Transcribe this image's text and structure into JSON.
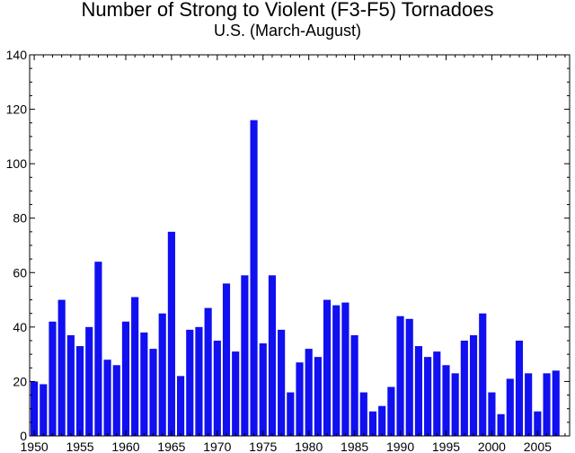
{
  "chart_data": {
    "type": "bar",
    "title": "Number of Strong to Violent (F3-F5) Tornadoes",
    "subtitle": "U.S.  (March-August)",
    "xlabel": "",
    "ylabel": "",
    "xlim": [
      1949.5,
      2008.5
    ],
    "ylim": [
      0,
      140
    ],
    "yticks": [
      0,
      20,
      40,
      60,
      80,
      100,
      120,
      140
    ],
    "xticks": [
      1950,
      1955,
      1960,
      1965,
      1970,
      1975,
      1980,
      1985,
      1990,
      1995,
      2000,
      2005
    ],
    "grid": false,
    "bar_color": "#1010f0",
    "x": [
      1950,
      1951,
      1952,
      1953,
      1954,
      1955,
      1956,
      1957,
      1958,
      1959,
      1960,
      1961,
      1962,
      1963,
      1964,
      1965,
      1966,
      1967,
      1968,
      1969,
      1970,
      1971,
      1972,
      1973,
      1974,
      1975,
      1976,
      1977,
      1978,
      1979,
      1980,
      1981,
      1982,
      1983,
      1984,
      1985,
      1986,
      1987,
      1988,
      1989,
      1990,
      1991,
      1992,
      1993,
      1994,
      1995,
      1996,
      1997,
      1998,
      1999,
      2000,
      2001,
      2002,
      2003,
      2004,
      2005,
      2006,
      2007
    ],
    "values": [
      20,
      19,
      42,
      50,
      37,
      33,
      40,
      64,
      28,
      26,
      42,
      51,
      38,
      32,
      45,
      75,
      22,
      39,
      40,
      47,
      35,
      56,
      31,
      59,
      116,
      34,
      59,
      39,
      16,
      27,
      32,
      29,
      50,
      48,
      49,
      37,
      16,
      9,
      11,
      18,
      44,
      43,
      33,
      29,
      31,
      26,
      23,
      35,
      37,
      45,
      16,
      8,
      21,
      35,
      23,
      9,
      23,
      24
    ]
  }
}
